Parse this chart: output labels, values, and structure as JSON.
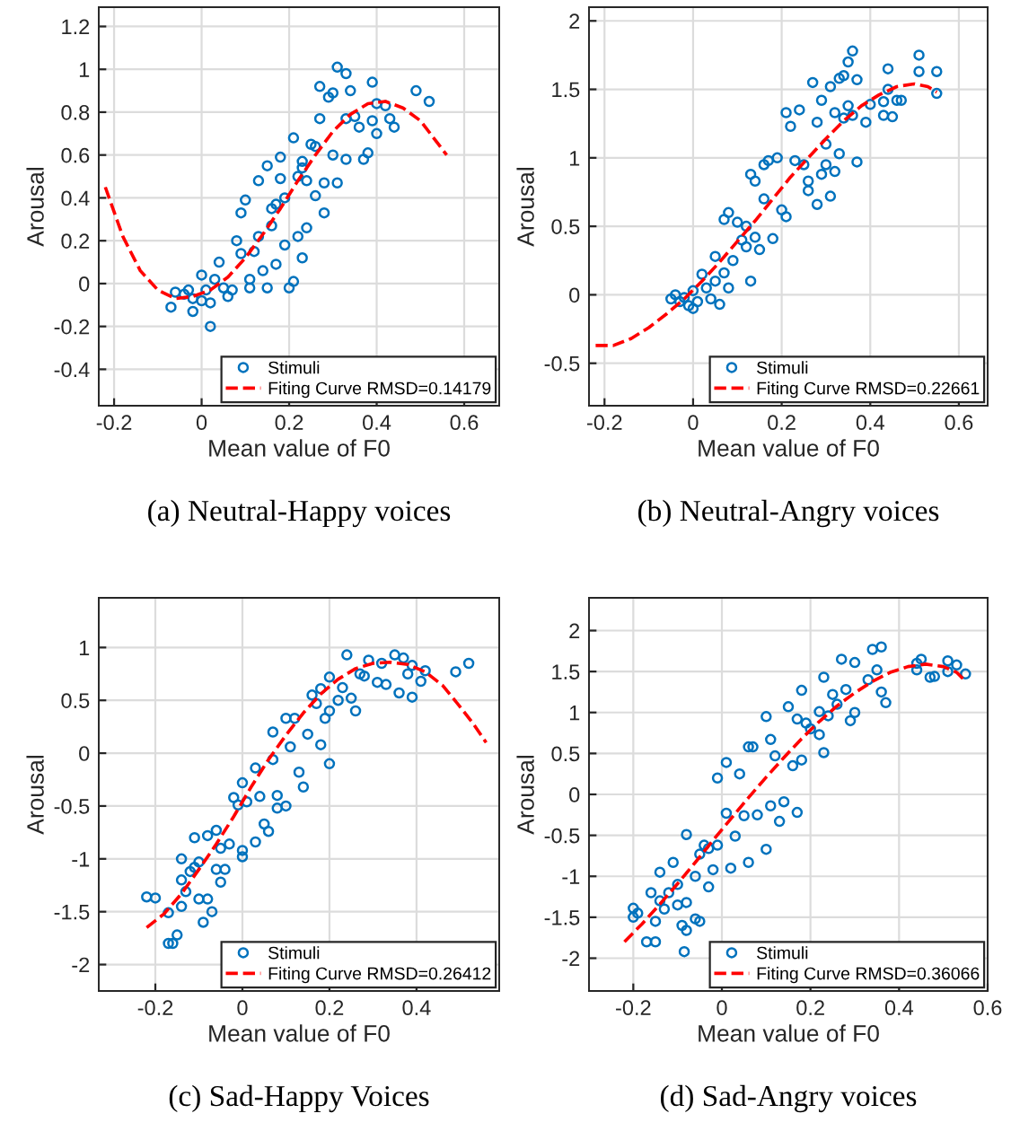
{
  "chart_data": [
    {
      "type": "scatter",
      "xlabel": "Mean value of F0",
      "ylabel": "Arousal",
      "annotations": [
        "(a) Neutral-Happy voices"
      ],
      "xlim": [
        -0.235,
        0.68
      ],
      "ylim": [
        -0.57,
        1.29
      ],
      "xticks": [
        -0.2,
        0,
        0.2,
        0.4,
        0.6
      ],
      "yticks": [
        -0.4,
        -0.2,
        0,
        0.2,
        0.4,
        0.6,
        0.8,
        1,
        1.2
      ],
      "grid": true,
      "legend": "bottom right",
      "series": [
        {
          "name": "Stimuli",
          "marker": "circle",
          "color": "#0072bd",
          "x": [
            -0.07,
            -0.06,
            -0.04,
            -0.03,
            -0.02,
            0,
            0,
            0.01,
            0.02,
            -0.02,
            0.02,
            0.03,
            0.04,
            0.05,
            0.06,
            0.07,
            0.08,
            0.09,
            0.1,
            0.11,
            0.11,
            0.12,
            0.13,
            0.13,
            0.14,
            0.15,
            0.15,
            0.16,
            0.17,
            0.18,
            0.18,
            0.19,
            0.19,
            0.2,
            0.21,
            0.21,
            0.22,
            0.22,
            0.23,
            0.23,
            0.24,
            0.24,
            0.25,
            0.26,
            0.26,
            0.27,
            0.27,
            0.28,
            0.28,
            0.29,
            0.3,
            0.3,
            0.31,
            0.31,
            0.33,
            0.33,
            0.33,
            0.34,
            0.35,
            0.36,
            0.37,
            0.38,
            0.39,
            0.39,
            0.4,
            0.4,
            0.42,
            0.43,
            0.44,
            0.49,
            0.52,
            0.23,
            0.16,
            0.09,
            0.17
          ],
          "values": [
            -0.11,
            -0.04,
            -0.05,
            -0.03,
            -0.07,
            0.04,
            -0.08,
            -0.03,
            -0.09,
            -0.13,
            -0.2,
            0.02,
            0.1,
            -0.02,
            -0.06,
            -0.03,
            0.2,
            0.14,
            0.39,
            -0.02,
            0.02,
            0.15,
            0.48,
            0.22,
            0.06,
            0.55,
            -0.02,
            0.27,
            0.37,
            0.59,
            0.49,
            0.4,
            0.18,
            -0.02,
            0.01,
            0.68,
            0.5,
            0.22,
            0.12,
            0.57,
            0.26,
            0.48,
            0.65,
            0.64,
            0.41,
            0.92,
            0.77,
            0.47,
            0.33,
            0.87,
            0.6,
            0.89,
            1.01,
            0.47,
            0.98,
            0.58,
            0.77,
            0.9,
            0.78,
            0.73,
            0.58,
            0.61,
            0.94,
            0.76,
            0.84,
            0.7,
            0.83,
            0.77,
            0.73,
            0.9,
            0.85,
            0.54,
            0.35,
            0.33,
            0.09
          ]
        },
        {
          "name": "Fiting Curve RMSD=0.14179",
          "type": "line",
          "line_style": "dashed",
          "color": "#ff0000",
          "x": [
            -0.22,
            -0.18,
            -0.14,
            -0.1,
            -0.06,
            -0.02,
            0.02,
            0.06,
            0.1,
            0.14,
            0.18,
            0.22,
            0.26,
            0.3,
            0.34,
            0.38,
            0.42,
            0.46,
            0.5,
            0.53,
            0.56
          ],
          "values": [
            0.45,
            0.22,
            0.06,
            -0.03,
            -0.07,
            -0.06,
            -0.03,
            0.03,
            0.12,
            0.23,
            0.35,
            0.48,
            0.6,
            0.71,
            0.79,
            0.84,
            0.85,
            0.82,
            0.76,
            0.68,
            0.6
          ]
        }
      ]
    },
    {
      "type": "scatter",
      "xlabel": "Mean value of F0",
      "ylabel": "Arousal",
      "annotations": [
        "(b) Neutral-Angry voices"
      ],
      "xlim": [
        -0.235,
        0.665
      ],
      "ylim": [
        -0.81,
        2.1
      ],
      "xticks": [
        -0.2,
        0,
        0.2,
        0.4,
        0.6
      ],
      "yticks": [
        -0.5,
        0,
        0.5,
        1,
        1.5,
        2
      ],
      "grid": true,
      "legend": "bottom right",
      "series": [
        {
          "name": "Stimuli",
          "marker": "circle",
          "color": "#0072bd",
          "x": [
            -0.05,
            -0.04,
            -0.03,
            -0.02,
            -0.01,
            0,
            0,
            0.01,
            0.02,
            0.03,
            0.04,
            0.05,
            0.05,
            0.06,
            0.07,
            0.07,
            0.08,
            0.08,
            0.09,
            0.1,
            0.11,
            0.12,
            0.12,
            0.13,
            0.13,
            0.14,
            0.14,
            0.15,
            0.16,
            0.16,
            0.17,
            0.18,
            0.19,
            0.2,
            0.21,
            0.21,
            0.22,
            0.23,
            0.24,
            0.25,
            0.26,
            0.26,
            0.27,
            0.28,
            0.28,
            0.29,
            0.29,
            0.3,
            0.3,
            0.31,
            0.31,
            0.32,
            0.32,
            0.33,
            0.33,
            0.34,
            0.34,
            0.35,
            0.35,
            0.36,
            0.36,
            0.37,
            0.37,
            0.39,
            0.4,
            0.43,
            0.43,
            0.44,
            0.44,
            0.45,
            0.46,
            0.47,
            0.51,
            0.51,
            0.55,
            0.55
          ],
          "values": [
            -0.03,
            0.0,
            -0.05,
            -0.02,
            -0.08,
            0.03,
            -0.1,
            -0.05,
            0.15,
            0.05,
            -0.03,
            0.28,
            0.1,
            -0.07,
            0.55,
            0.16,
            0.6,
            0.05,
            0.25,
            0.53,
            0.4,
            0.5,
            0.35,
            0.88,
            0.1,
            0.83,
            0.42,
            0.33,
            0.7,
            0.95,
            0.98,
            0.41,
            1.0,
            0.62,
            0.57,
            1.33,
            1.23,
            0.98,
            1.35,
            0.95,
            0.76,
            0.83,
            1.55,
            1.26,
            0.66,
            0.88,
            1.42,
            1.1,
            0.95,
            0.72,
            1.52,
            1.33,
            0.9,
            1.58,
            1.03,
            1.6,
            1.29,
            1.7,
            1.38,
            1.78,
            1.31,
            0.97,
            1.57,
            1.26,
            1.39,
            1.41,
            1.31,
            1.65,
            1.5,
            1.3,
            1.42,
            1.42,
            1.75,
            1.63,
            1.47,
            1.63
          ]
        },
        {
          "name": "Fiting Curve RMSD=0.22661",
          "type": "line",
          "line_style": "dashed",
          "color": "#ff0000",
          "x": [
            -0.22,
            -0.18,
            -0.14,
            -0.1,
            -0.06,
            -0.02,
            0.02,
            0.06,
            0.1,
            0.14,
            0.18,
            0.22,
            0.26,
            0.3,
            0.34,
            0.38,
            0.42,
            0.46,
            0.5,
            0.53,
            0.55
          ],
          "values": [
            -0.37,
            -0.37,
            -0.32,
            -0.24,
            -0.14,
            -0.03,
            0.1,
            0.24,
            0.39,
            0.54,
            0.7,
            0.86,
            1.0,
            1.14,
            1.27,
            1.38,
            1.46,
            1.52,
            1.54,
            1.52,
            1.48
          ]
        }
      ]
    },
    {
      "type": "scatter",
      "xlabel": "Mean value of F0",
      "ylabel": "Arousal",
      "annotations": [
        "(c) Sad-Happy Voices"
      ],
      "xlim": [
        -0.33,
        0.59
      ],
      "ylim": [
        -2.25,
        1.47
      ],
      "xticks": [
        -0.2,
        0,
        0.2,
        0.4
      ],
      "yticks": [
        -2,
        -1.5,
        -1,
        -0.5,
        0,
        0.5,
        1
      ],
      "grid": true,
      "legend": "bottom right",
      "series": [
        {
          "name": "Stimuli",
          "marker": "circle",
          "color": "#0072bd",
          "x": [
            -0.22,
            -0.2,
            -0.17,
            -0.17,
            -0.16,
            -0.15,
            -0.14,
            -0.14,
            -0.14,
            -0.13,
            -0.12,
            -0.11,
            -0.11,
            -0.1,
            -0.1,
            -0.09,
            -0.08,
            -0.08,
            -0.07,
            -0.06,
            -0.06,
            -0.05,
            -0.05,
            -0.04,
            -0.03,
            -0.02,
            -0.01,
            0,
            0,
            0,
            0.01,
            0.03,
            0.03,
            0.04,
            0.05,
            0.06,
            0.07,
            0.07,
            0.08,
            0.08,
            0.1,
            0.1,
            0.11,
            0.12,
            0.13,
            0.14,
            0.15,
            0.16,
            0.17,
            0.18,
            0.18,
            0.19,
            0.2,
            0.2,
            0.2,
            0.22,
            0.23,
            0.24,
            0.25,
            0.26,
            0.27,
            0.28,
            0.29,
            0.31,
            0.32,
            0.33,
            0.35,
            0.36,
            0.37,
            0.38,
            0.39,
            0.39,
            0.41,
            0.42,
            0.49,
            0.52
          ],
          "values": [
            -1.36,
            -1.37,
            -1.51,
            -1.8,
            -1.8,
            -1.72,
            -1.0,
            -1.2,
            -1.45,
            -1.31,
            -1.12,
            -1.08,
            -0.8,
            -1.03,
            -1.38,
            -1.6,
            -1.38,
            -0.78,
            -1.5,
            -1.1,
            -0.73,
            -1.22,
            -0.9,
            -1.1,
            -0.86,
            -0.42,
            -0.49,
            -0.28,
            -0.92,
            -0.98,
            -0.46,
            -0.84,
            -0.14,
            -0.41,
            -0.67,
            -0.74,
            0.2,
            -0.06,
            -0.4,
            -0.52,
            0.33,
            -0.5,
            0.06,
            0.33,
            -0.18,
            -0.32,
            0.18,
            0.55,
            0.47,
            0.08,
            0.61,
            0.33,
            0.72,
            -0.1,
            0.4,
            0.5,
            0.62,
            0.93,
            0.52,
            0.4,
            0.75,
            0.73,
            0.88,
            0.67,
            0.85,
            0.65,
            0.93,
            0.57,
            0.9,
            0.75,
            0.53,
            0.83,
            0.68,
            0.78,
            0.77,
            0.85
          ]
        },
        {
          "name": "Fiting Curve RMSD=0.26412",
          "type": "line",
          "line_style": "dashed",
          "color": "#ff0000",
          "x": [
            -0.22,
            -0.18,
            -0.14,
            -0.1,
            -0.06,
            -0.02,
            0.02,
            0.06,
            0.1,
            0.14,
            0.18,
            0.22,
            0.26,
            0.3,
            0.34,
            0.38,
            0.42,
            0.46,
            0.5,
            0.53,
            0.56
          ],
          "values": [
            -1.65,
            -1.52,
            -1.33,
            -1.1,
            -0.86,
            -0.6,
            -0.32,
            -0.06,
            0.17,
            0.38,
            0.56,
            0.7,
            0.8,
            0.85,
            0.86,
            0.84,
            0.77,
            0.64,
            0.44,
            0.28,
            0.1
          ]
        }
      ]
    },
    {
      "type": "scatter",
      "xlabel": "Mean value of F0",
      "ylabel": "Arousal",
      "annotations": [
        "(d) Sad-Angry voices"
      ],
      "xlim": [
        -0.3,
        0.6
      ],
      "ylim": [
        -2.4,
        2.4
      ],
      "xticks": [
        -0.2,
        0,
        0.2,
        0.4,
        0.6
      ],
      "yticks": [
        -2,
        -1.5,
        -1,
        -0.5,
        0,
        0.5,
        1,
        1.5,
        2
      ],
      "grid": true,
      "legend": "bottom right",
      "series": [
        {
          "name": "Stimuli",
          "marker": "circle",
          "color": "#0072bd",
          "x": [
            -0.2,
            -0.2,
            -0.19,
            -0.17,
            -0.15,
            -0.16,
            -0.15,
            -0.14,
            -0.14,
            -0.13,
            -0.12,
            -0.11,
            -0.1,
            -0.1,
            -0.09,
            -0.08,
            -0.08,
            -0.08,
            -0.085,
            -0.06,
            -0.06,
            -0.05,
            -0.05,
            -0.04,
            -0.03,
            -0.03,
            -0.02,
            -0.01,
            -0.01,
            0.01,
            0.01,
            0.02,
            0.03,
            0.04,
            0.05,
            0.06,
            0.06,
            0.07,
            0.08,
            0.1,
            0.1,
            0.11,
            0.11,
            0.12,
            0.13,
            0.14,
            0.15,
            0.16,
            0.17,
            0.17,
            0.18,
            0.18,
            0.19,
            0.2,
            0.22,
            0.22,
            0.23,
            0.23,
            0.24,
            0.25,
            0.26,
            0.27,
            0.28,
            0.29,
            0.3,
            0.3,
            0.33,
            0.34,
            0.35,
            0.36,
            0.36,
            0.37,
            0.44,
            0.44,
            0.45,
            0.47,
            0.48,
            0.51,
            0.51,
            0.53,
            0.55
          ],
          "values": [
            -1.39,
            -1.5,
            -1.45,
            -1.8,
            -1.8,
            -1.2,
            -1.55,
            -1.3,
            -0.95,
            -1.4,
            -1.2,
            -0.83,
            -1.35,
            -1.1,
            -1.6,
            -1.66,
            -1.32,
            -0.49,
            -1.92,
            -1.52,
            -1.0,
            -0.73,
            -1.55,
            -0.62,
            -1.13,
            -0.66,
            -0.92,
            -0.62,
            0.2,
            0.39,
            -0.23,
            -0.9,
            -0.51,
            0.25,
            -0.26,
            0.58,
            -0.83,
            0.58,
            -0.25,
            -0.67,
            0.95,
            -0.14,
            0.67,
            0.47,
            -0.33,
            -0.09,
            1.07,
            0.35,
            0.92,
            -0.22,
            1.27,
            0.42,
            0.87,
            0.8,
            1.01,
            0.73,
            0.51,
            1.43,
            0.96,
            1.22,
            1.1,
            1.65,
            1.28,
            0.9,
            1.61,
            1.0,
            1.4,
            1.77,
            1.52,
            1.8,
            1.25,
            1.12,
            1.6,
            1.52,
            1.65,
            1.43,
            1.44,
            1.63,
            1.5,
            1.58,
            1.47
          ]
        },
        {
          "name": "Fiting Curve RMSD=0.36066",
          "type": "line",
          "line_style": "dashed",
          "color": "#ff0000",
          "x": [
            -0.22,
            -0.18,
            -0.14,
            -0.1,
            -0.06,
            -0.02,
            0.02,
            0.06,
            0.1,
            0.14,
            0.18,
            0.22,
            0.26,
            0.3,
            0.34,
            0.38,
            0.42,
            0.46,
            0.5,
            0.53,
            0.55
          ],
          "values": [
            -1.8,
            -1.58,
            -1.34,
            -1.09,
            -0.83,
            -0.56,
            -0.3,
            -0.04,
            0.21,
            0.45,
            0.68,
            0.89,
            1.08,
            1.24,
            1.38,
            1.49,
            1.56,
            1.59,
            1.56,
            1.49,
            1.38
          ]
        }
      ]
    }
  ]
}
